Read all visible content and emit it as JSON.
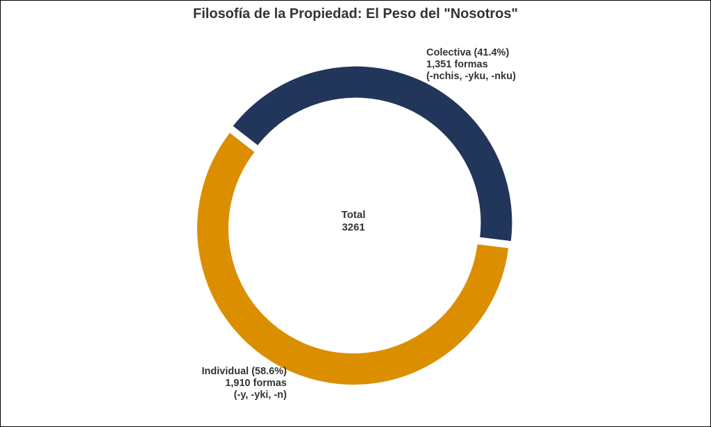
{
  "chart_data": {
    "type": "pie",
    "subtype": "donut",
    "title": "Filosofía de la Propiedad: El Peso del \"Nosotros\"",
    "slices": [
      {
        "name": "Colectiva",
        "percent": 41.4,
        "value": 1351,
        "label_lines": [
          "Colectiva (41.4%)",
          "1,351 formas",
          "(-nchis, -yku, -nku)"
        ],
        "color": "#22355a",
        "exploded": true
      },
      {
        "name": "Individual",
        "percent": 58.6,
        "value": 1910,
        "label_lines": [
          "Individual (58.6%)",
          "1,910 formas",
          "(-y, -yki, -n)"
        ],
        "color": "#db8f00",
        "exploded": false
      }
    ],
    "center_label": [
      "Total",
      "3261"
    ]
  }
}
